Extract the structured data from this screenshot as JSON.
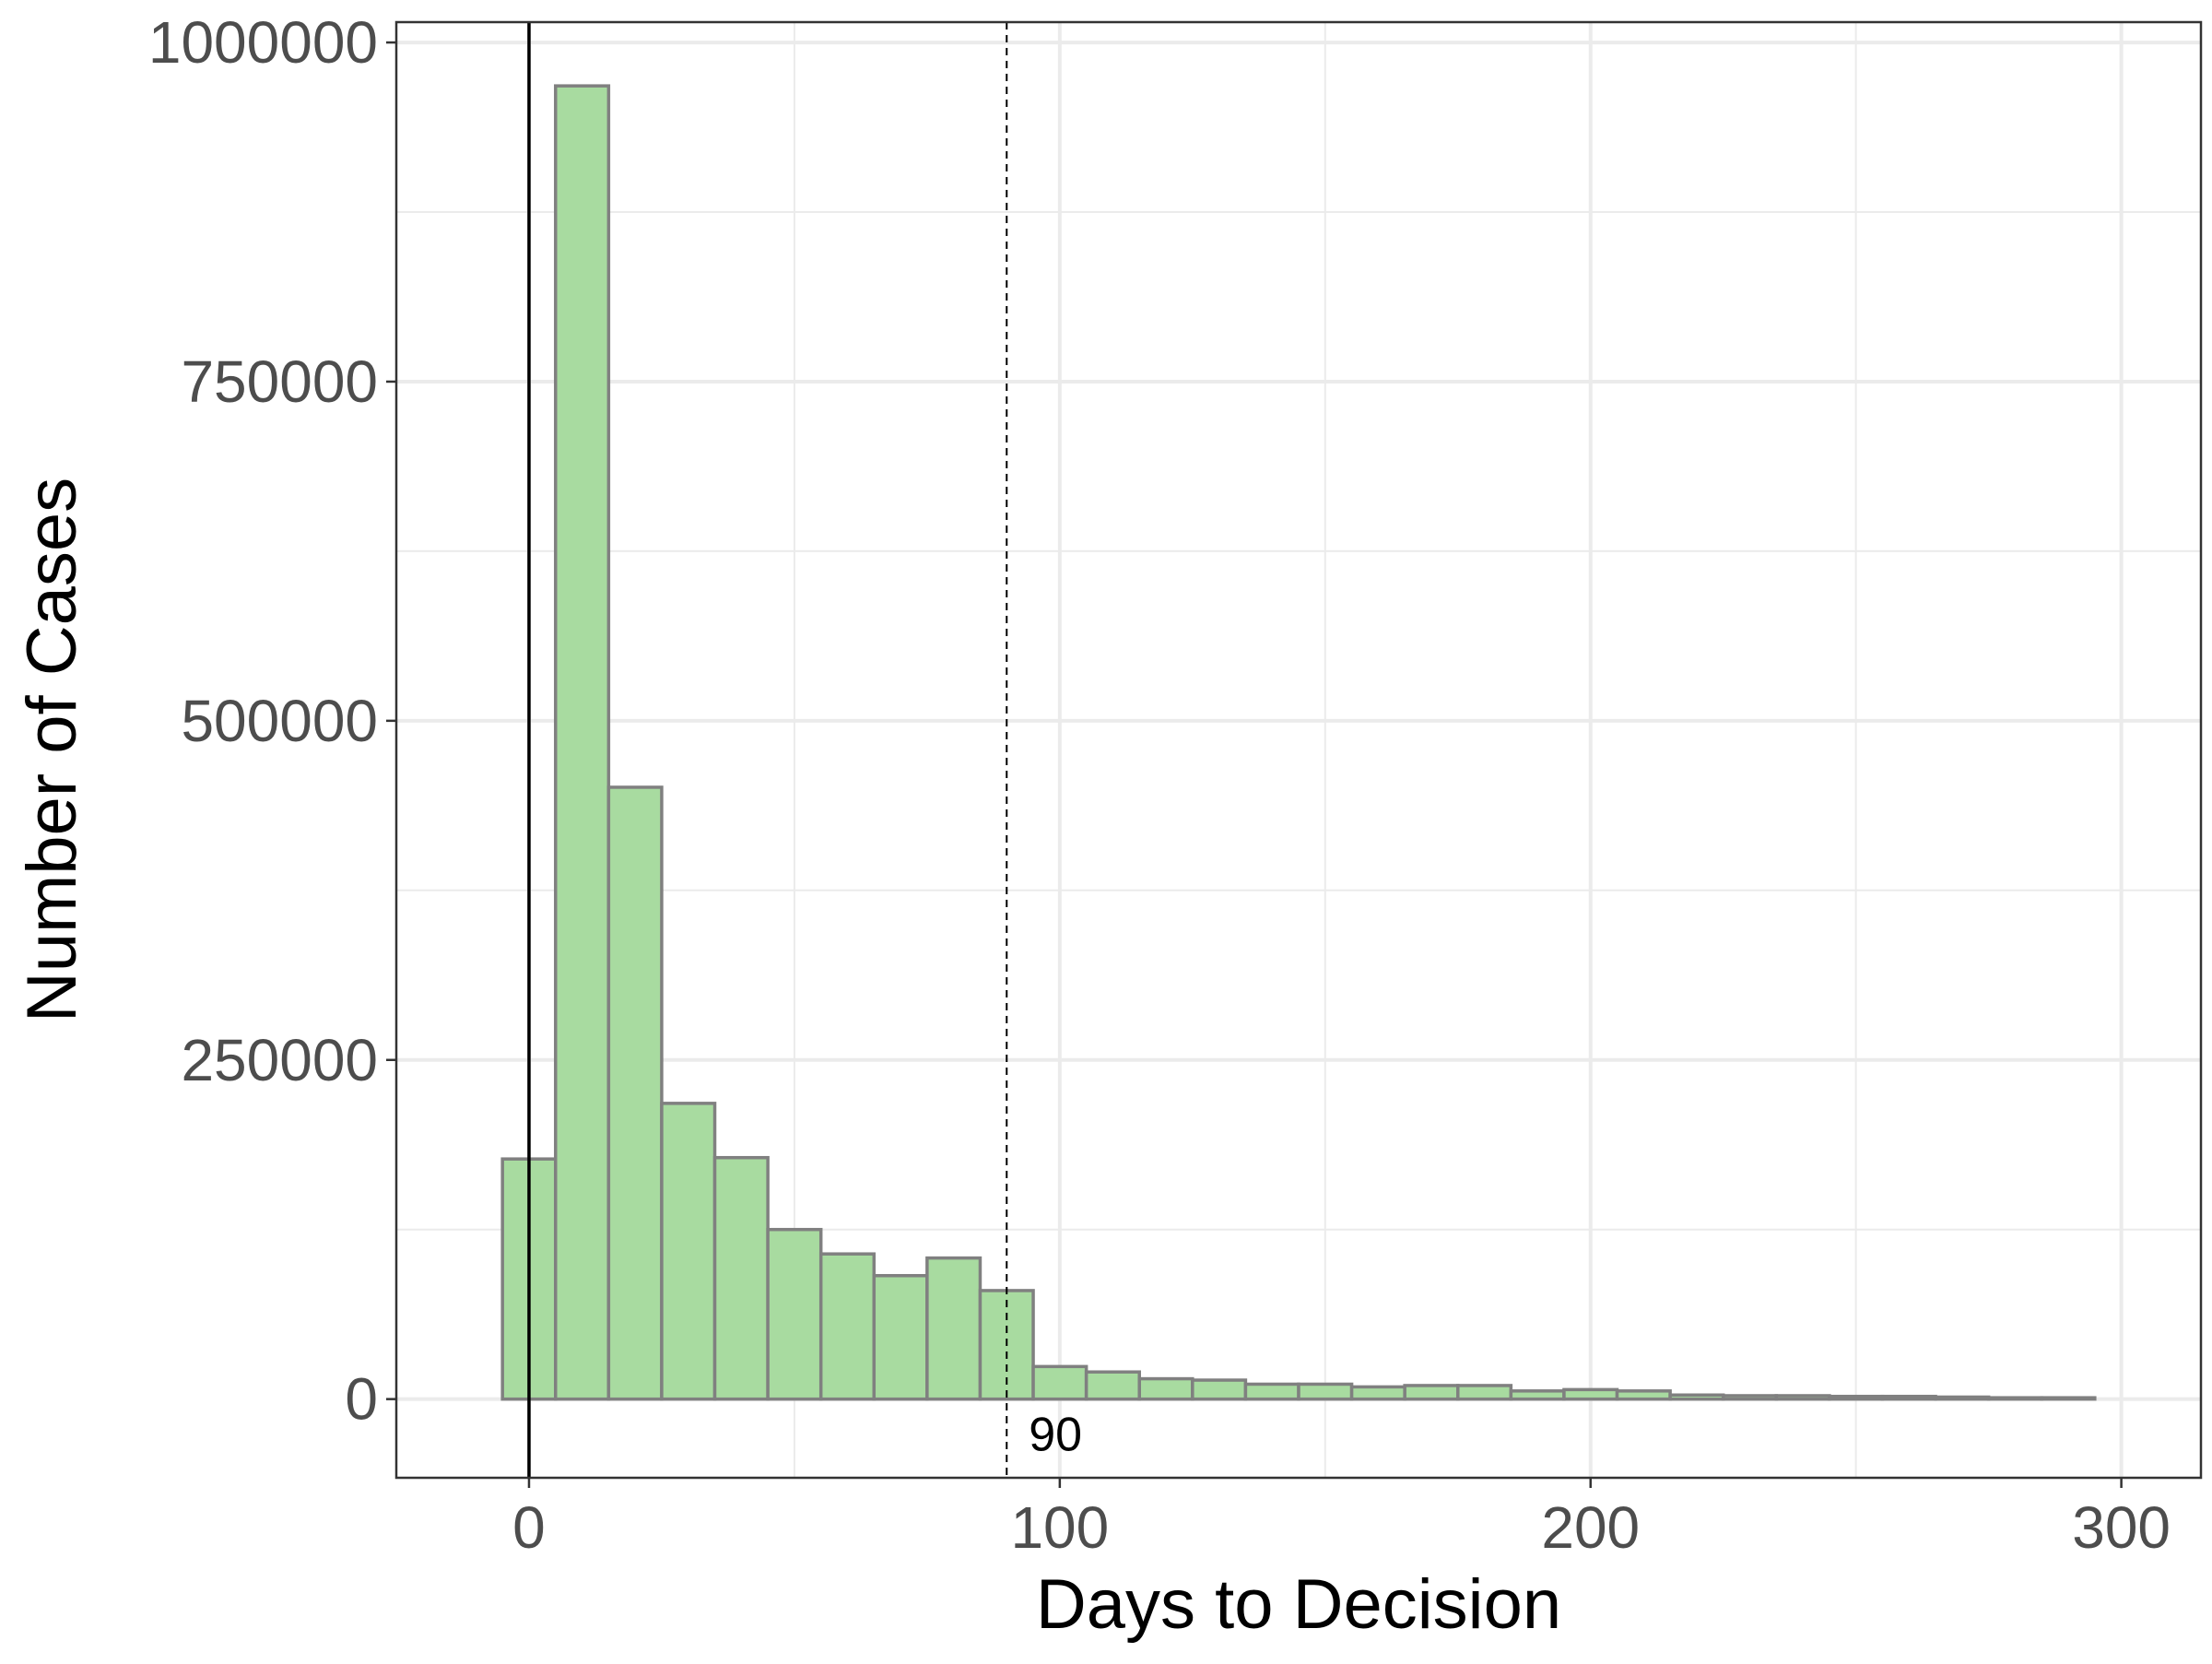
{
  "chart_data": {
    "type": "bar",
    "xlabel": "Days to Decision",
    "ylabel": "Number of Cases",
    "xlim": [
      -25,
      315
    ],
    "ylim": [
      -58000,
      1015000
    ],
    "x_ticks": [
      0,
      100,
      200,
      300
    ],
    "y_ticks": [
      0,
      250000,
      500000,
      750000,
      1000000
    ],
    "minor_x_gridlines": [
      50,
      150,
      250
    ],
    "minor_y_gridlines": [
      125000,
      375000,
      625000,
      875000
    ],
    "grid": true,
    "bin_width": 10,
    "bins": [
      {
        "center": 0,
        "value": 177000
      },
      {
        "center": 10,
        "value": 968000
      },
      {
        "center": 20,
        "value": 451000
      },
      {
        "center": 30,
        "value": 218000
      },
      {
        "center": 40,
        "value": 178000
      },
      {
        "center": 50,
        "value": 125000
      },
      {
        "center": 60,
        "value": 107000
      },
      {
        "center": 70,
        "value": 91000
      },
      {
        "center": 80,
        "value": 104000
      },
      {
        "center": 90,
        "value": 80000
      },
      {
        "center": 100,
        "value": 24000
      },
      {
        "center": 110,
        "value": 20000
      },
      {
        "center": 120,
        "value": 15000
      },
      {
        "center": 130,
        "value": 14000
      },
      {
        "center": 140,
        "value": 11000
      },
      {
        "center": 150,
        "value": 11000
      },
      {
        "center": 160,
        "value": 9000
      },
      {
        "center": 170,
        "value": 10000
      },
      {
        "center": 180,
        "value": 10000
      },
      {
        "center": 190,
        "value": 6000
      },
      {
        "center": 200,
        "value": 7000
      },
      {
        "center": 210,
        "value": 6000
      },
      {
        "center": 220,
        "value": 3000
      },
      {
        "center": 230,
        "value": 2500
      },
      {
        "center": 240,
        "value": 2500
      },
      {
        "center": 250,
        "value": 2000
      },
      {
        "center": 260,
        "value": 2000
      },
      {
        "center": 270,
        "value": 1500
      },
      {
        "center": 280,
        "value": 1000
      },
      {
        "center": 290,
        "value": 1000
      }
    ],
    "reference_lines": [
      {
        "x": 0,
        "style": "solid"
      },
      {
        "x": 90,
        "style": "dashed",
        "label": "90"
      }
    ],
    "colors": {
      "bar_fill": "#a8dba0",
      "bar_stroke": "#808080",
      "grid": "#ebebeb",
      "panel_border": "#333333"
    }
  }
}
